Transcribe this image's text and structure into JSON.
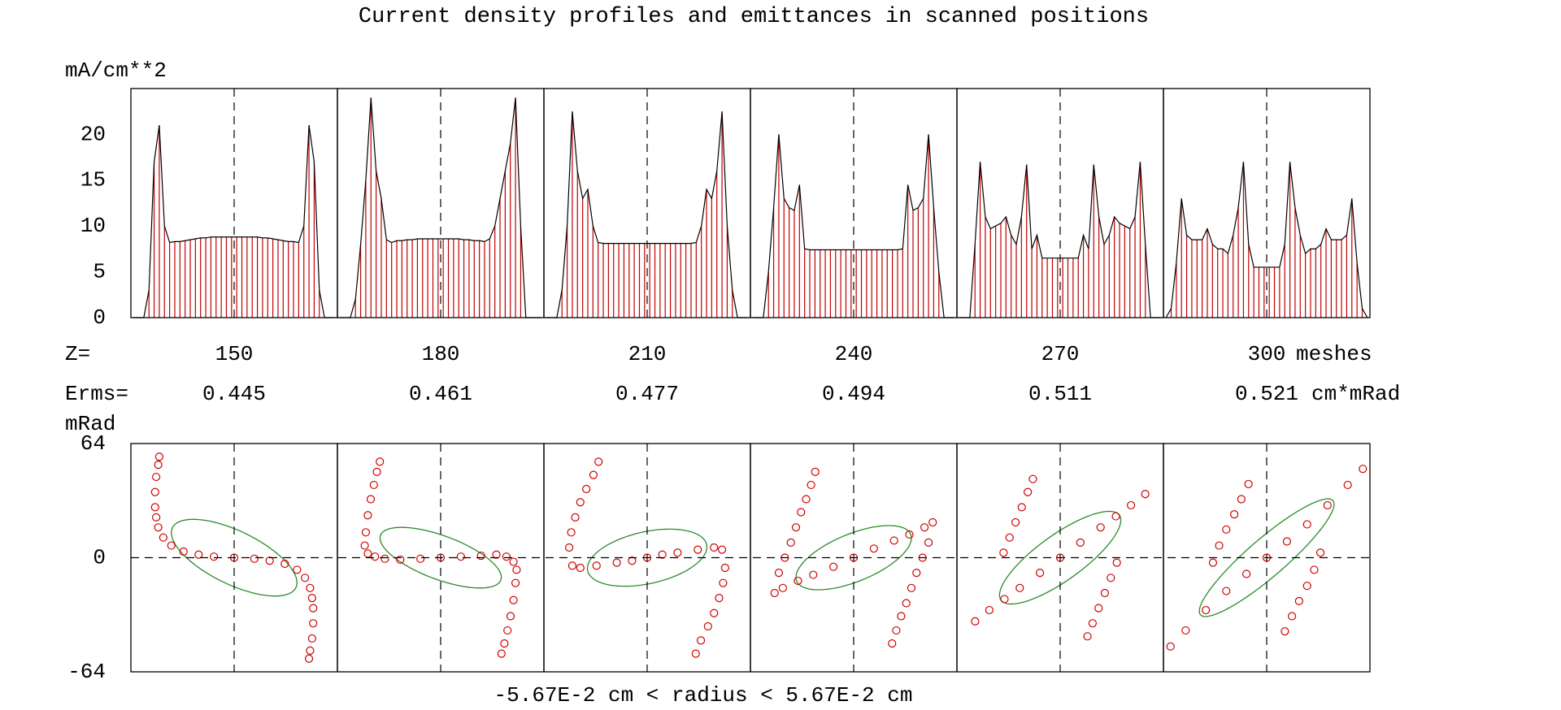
{
  "title": "Current density profiles and emittances in scanned positions",
  "z_label": "Z=",
  "z_unit": "meshes",
  "erms_label": "Erms=",
  "erms_unit": "cm*mRad",
  "positions": [
    {
      "z": 150,
      "erms": 0.445
    },
    {
      "z": 180,
      "erms": 0.461
    },
    {
      "z": 210,
      "erms": 0.477
    },
    {
      "z": 240,
      "erms": 0.494
    },
    {
      "z": 270,
      "erms": 0.511
    },
    {
      "z": 300,
      "erms": 0.521
    }
  ],
  "chart_data": [
    {
      "type": "bar",
      "y_label": "mA/cm**2",
      "ylim": [
        0,
        25
      ],
      "yticks": [
        0,
        5,
        10,
        15,
        20
      ],
      "color": "#c00000",
      "outline_color": "#000000",
      "panels": [
        {
          "values": [
            0,
            0,
            0,
            3,
            17,
            21,
            10,
            8.2,
            8.3,
            8.3,
            8.4,
            8.5,
            8.6,
            8.7,
            8.7,
            8.8,
            8.8,
            8.8,
            8.8,
            8.8,
            8.8,
            8.8,
            8.8,
            8.8,
            8.8,
            8.7,
            8.7,
            8.6,
            8.5,
            8.4,
            8.3,
            8.3,
            8.2,
            10,
            21,
            17,
            3,
            0,
            0,
            0
          ]
        },
        {
          "values": [
            0,
            0,
            0,
            2,
            8,
            15,
            24,
            16,
            13,
            8.5,
            8.2,
            8.4,
            8.4,
            8.5,
            8.5,
            8.6,
            8.6,
            8.6,
            8.6,
            8.6,
            8.6,
            8.6,
            8.6,
            8.6,
            8.5,
            8.5,
            8.4,
            8.4,
            8.3,
            8.6,
            10,
            13,
            16,
            19,
            24,
            10,
            0,
            0,
            0,
            0
          ]
        },
        {
          "values": [
            0,
            0,
            0,
            3,
            10,
            22.5,
            16,
            13,
            14,
            10,
            8.2,
            8.1,
            8.1,
            8.1,
            8.1,
            8.1,
            8.1,
            8.1,
            8.1,
            8.1,
            8.1,
            8.1,
            8.1,
            8.1,
            8.1,
            8.1,
            8.1,
            8.1,
            8.1,
            8.2,
            10,
            14,
            13,
            16,
            22.5,
            10,
            3,
            0,
            0,
            0
          ]
        },
        {
          "values": [
            0,
            0,
            0,
            5,
            12,
            20,
            13,
            12,
            11.7,
            14.5,
            7.5,
            7.4,
            7.4,
            7.4,
            7.4,
            7.4,
            7.4,
            7.4,
            7.4,
            7.4,
            7.4,
            7.4,
            7.4,
            7.4,
            7.4,
            7.4,
            7.4,
            7.4,
            7.4,
            7.5,
            14.5,
            11.7,
            12,
            13,
            20,
            12,
            5,
            0,
            0,
            0
          ]
        },
        {
          "values": [
            0,
            0,
            0,
            8,
            17,
            11,
            9.7,
            10,
            10.3,
            11,
            9,
            8,
            11,
            16.7,
            7.5,
            9,
            6.5,
            6.5,
            6.5,
            6.5,
            6.5,
            6.5,
            6.5,
            6.5,
            9,
            7.5,
            16.7,
            11,
            8,
            9,
            11,
            10.3,
            10,
            9.7,
            11,
            17,
            8,
            0,
            0,
            0
          ]
        },
        {
          "values": [
            0,
            1,
            6,
            13,
            9,
            8.5,
            8.5,
            8.5,
            9.7,
            8,
            7.5,
            7.5,
            7,
            9,
            12,
            17,
            8,
            5.5,
            5.5,
            5.5,
            5.5,
            5.5,
            5.5,
            8,
            17,
            12,
            9,
            7,
            7.5,
            7.5,
            8,
            9.7,
            8.5,
            8.5,
            8.5,
            9,
            13,
            6,
            1,
            0
          ]
        }
      ]
    },
    {
      "type": "scatter",
      "y_label": "mRad",
      "x_label": "-5.67E-2 cm < radius < 5.67E-2 cm",
      "xlim": [
        -0.0567,
        0.0567
      ],
      "ylim": [
        -64,
        64
      ],
      "yticks": [
        -64,
        0,
        64
      ],
      "color": "#d00000",
      "ellipse_color": "#2a8a2a",
      "panels": [
        {
          "x": [
            -0.0411,
            -0.0417,
            -0.0428,
            -0.0434,
            -0.0434,
            -0.0428,
            -0.0417,
            -0.0389,
            -0.0345,
            -0.0278,
            -0.0195,
            -0.0111,
            0,
            0.0111,
            0.0195,
            0.0278,
            0.0345,
            0.0389,
            0.0417,
            0.0428,
            0.0434,
            0.0434,
            0.0428,
            0.0417,
            0.0411
          ],
          "y": [
            56.6,
            52.1,
            45.3,
            36.8,
            28.3,
            22.6,
            17.0,
            11.3,
            6.8,
            3.4,
            1.7,
            0.6,
            0,
            -0.6,
            -1.7,
            -3.4,
            -6.8,
            -11.3,
            -17.0,
            -22.6,
            -28.3,
            -36.8,
            -45.3,
            -52.1,
            -56.6
          ],
          "ellipse": {
            "x_max": 0.0345,
            "y_max": 21.5,
            "y_at_x_max": -14
          }
        },
        {
          "x": [
            -0.0334,
            -0.035,
            -0.0367,
            -0.0384,
            -0.04,
            -0.0411,
            -0.0417,
            -0.04,
            -0.0361,
            -0.0306,
            -0.0222,
            -0.0111,
            0,
            0.0111,
            0.0222,
            0.0306,
            0.0361,
            0.04,
            0.0417,
            0.0411,
            0.04,
            0.0384,
            0.0367,
            0.035,
            0.0334
          ],
          "y": [
            53.8,
            48.1,
            40.8,
            32.8,
            23.8,
            14.2,
            6.8,
            2.3,
            0.6,
            -0.6,
            -1.1,
            -0.6,
            0,
            0.6,
            1.1,
            1.7,
            0.6,
            -2.3,
            -6.8,
            -14.2,
            -23.8,
            -32.8,
            -40.8,
            -48.1,
            -53.8
          ],
          "ellipse": {
            "x_max": 0.0333,
            "y_max": 17,
            "y_at_x_max": -11
          }
        },
        {
          "x": [
            -0.0267,
            -0.0295,
            -0.0334,
            -0.0367,
            -0.0395,
            -0.0417,
            -0.0428,
            -0.0411,
            -0.0367,
            -0.0278,
            -0.0167,
            -0.0083,
            0,
            0.0083,
            0.0167,
            0.0278,
            0.0367,
            0.0411,
            0.0428,
            0.0417,
            0.0395,
            0.0367,
            0.0334,
            0.0295,
            0.0267
          ],
          "y": [
            53.8,
            46.4,
            38.5,
            31.1,
            22.6,
            14.2,
            5.7,
            -4.5,
            -5.7,
            -4.5,
            -2.8,
            -1.7,
            0,
            1.7,
            2.8,
            4.5,
            5.7,
            4.5,
            -5.7,
            -14.2,
            -22.6,
            -31.1,
            -38.5,
            -46.4,
            -53.8
          ],
          "ellipse": {
            "x_max": 0.0328,
            "y_max": 16,
            "y_at_x_max": 6
          }
        },
        {
          "x": [
            -0.0211,
            -0.0234,
            -0.0261,
            -0.0289,
            -0.0317,
            -0.0345,
            -0.0378,
            -0.0411,
            -0.0434,
            -0.0389,
            -0.0306,
            -0.0222,
            -0.0111,
            0,
            0.0111,
            0.0222,
            0.0306,
            0.0389,
            0.0434,
            0.0411,
            0.0378,
            0.0345,
            0.0317,
            0.0289,
            0.0261,
            0.0234,
            0.0211
          ],
          "y": [
            48.1,
            40.8,
            32.8,
            25.5,
            17.0,
            8.5,
            0,
            -8.5,
            -19.8,
            -17.0,
            -13.0,
            -9.6,
            -5.1,
            0,
            5.1,
            9.6,
            13.0,
            17.0,
            19.8,
            8.5,
            0,
            -8.5,
            -17.0,
            -25.5,
            -32.8,
            -40.8,
            -48.1
          ],
          "ellipse": {
            "x_max": 0.0317,
            "y_max": 18,
            "y_at_x_max": 11
          }
        },
        {
          "x": [
            -0.015,
            -0.0178,
            -0.0211,
            -0.0245,
            -0.0278,
            -0.0311,
            -0.0467,
            -0.0389,
            -0.0306,
            -0.0222,
            -0.0111,
            0,
            0.0111,
            0.0222,
            0.0306,
            0.0389,
            0.0467,
            0.0311,
            0.0278,
            0.0245,
            0.0211,
            0.0178,
            0.015
          ],
          "y": [
            44.1,
            36.8,
            28.3,
            19.8,
            11.3,
            2.8,
            -35.7,
            -29.4,
            -23.2,
            -17.0,
            -8.5,
            0,
            8.5,
            17.0,
            23.2,
            29.4,
            35.7,
            -2.8,
            -11.3,
            -19.8,
            -28.3,
            -36.8,
            -44.1
          ],
          "ellipse": {
            "x_max": 0.0333,
            "y_max": 26,
            "y_at_x_max": 21
          }
        },
        {
          "x": [
            -0.01,
            -0.0139,
            -0.0178,
            -0.0222,
            -0.0261,
            -0.0295,
            -0.0528,
            -0.0445,
            -0.0334,
            -0.0222,
            -0.0111,
            0,
            0.0111,
            0.0222,
            0.0334,
            0.0445,
            0.0528,
            0.0295,
            0.0261,
            0.0222,
            0.0178,
            0.0139,
            0.01
          ],
          "y": [
            41.3,
            32.8,
            24.3,
            15.8,
            6.8,
            -2.8,
            -49.8,
            -40.8,
            -29.4,
            -18.7,
            -9.1,
            0,
            9.1,
            18.7,
            29.4,
            40.8,
            49.8,
            2.8,
            -6.8,
            -15.8,
            -24.3,
            -32.8,
            -41.3
          ],
          "ellipse": {
            "x_max": 0.037,
            "y_max": 33,
            "y_at_x_max": 30
          }
        }
      ]
    }
  ]
}
